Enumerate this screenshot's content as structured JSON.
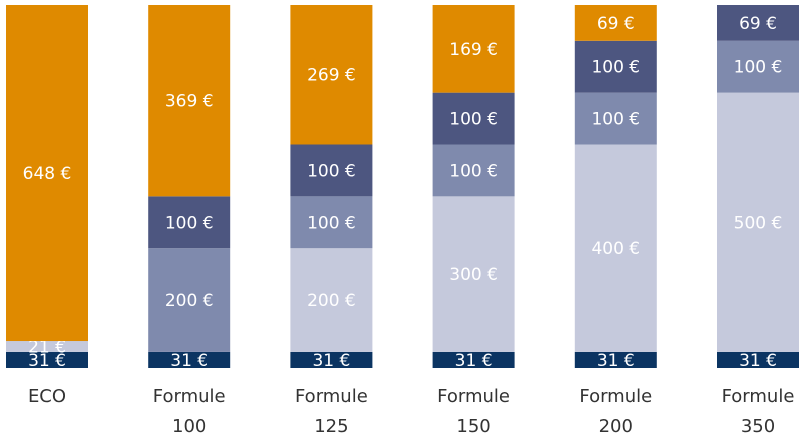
{
  "chart_data": {
    "type": "stacked_bar",
    "categories": [
      "ECO",
      "Formule 100",
      "Formule 125",
      "Formule 150",
      "Formule 200",
      "Formule 350"
    ],
    "ylim": [
      0,
      700
    ],
    "series": [
      {
        "color": "#0b3462",
        "values": [
          31,
          31,
          31,
          31,
          31,
          31
        ],
        "value_labels": [
          "31 €",
          "31 €",
          "31 €",
          "31 €",
          "31 €",
          "31 €"
        ]
      },
      {
        "color": "#c5c9dc",
        "values": [
          21,
          null,
          200,
          300,
          400,
          500
        ],
        "value_labels": [
          "21 €",
          null,
          "200 €",
          "300 €",
          "400 €",
          "500 €"
        ]
      },
      {
        "color": "#7f8aad",
        "values": [
          null,
          200,
          100,
          100,
          100,
          100
        ],
        "value_labels": [
          null,
          "200 €",
          "100 €",
          "100 €",
          "100 €",
          "100 €"
        ]
      },
      {
        "color": "#4d5680",
        "values": [
          null,
          100,
          100,
          100,
          100,
          69
        ],
        "value_labels": [
          null,
          "100 €",
          "100 €",
          "100 €",
          "100 €",
          "69 €"
        ]
      },
      {
        "color": "#df8a00",
        "values": [
          648,
          369,
          269,
          169,
          69,
          null
        ],
        "value_labels": [
          "648 €",
          "369 €",
          "269 €",
          "169 €",
          "69 €",
          null
        ]
      }
    ]
  }
}
